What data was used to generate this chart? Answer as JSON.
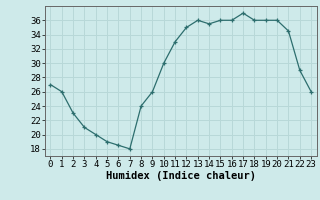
{
  "x": [
    0,
    1,
    2,
    3,
    4,
    5,
    6,
    7,
    8,
    9,
    10,
    11,
    12,
    13,
    14,
    15,
    16,
    17,
    18,
    19,
    20,
    21,
    22,
    23
  ],
  "y": [
    27,
    26,
    23,
    21,
    20,
    19,
    18.5,
    18,
    24,
    26,
    30,
    33,
    35,
    36,
    35.5,
    36,
    36,
    37,
    36,
    36,
    36,
    34.5,
    29,
    26
  ],
  "line_color": "#2d6e6e",
  "marker_color": "#2d6e6e",
  "bg_color": "#ceeaea",
  "grid_color": "#b8d8d8",
  "xlabel": "Humidex (Indice chaleur)",
  "ylabel": "",
  "xlim": [
    -0.5,
    23.5
  ],
  "ylim": [
    17,
    38
  ],
  "yticks": [
    18,
    20,
    22,
    24,
    26,
    28,
    30,
    32,
    34,
    36
  ],
  "xticks": [
    0,
    1,
    2,
    3,
    4,
    5,
    6,
    7,
    8,
    9,
    10,
    11,
    12,
    13,
    14,
    15,
    16,
    17,
    18,
    19,
    20,
    21,
    22,
    23
  ],
  "tick_fontsize": 6.5,
  "xlabel_fontsize": 7.5
}
